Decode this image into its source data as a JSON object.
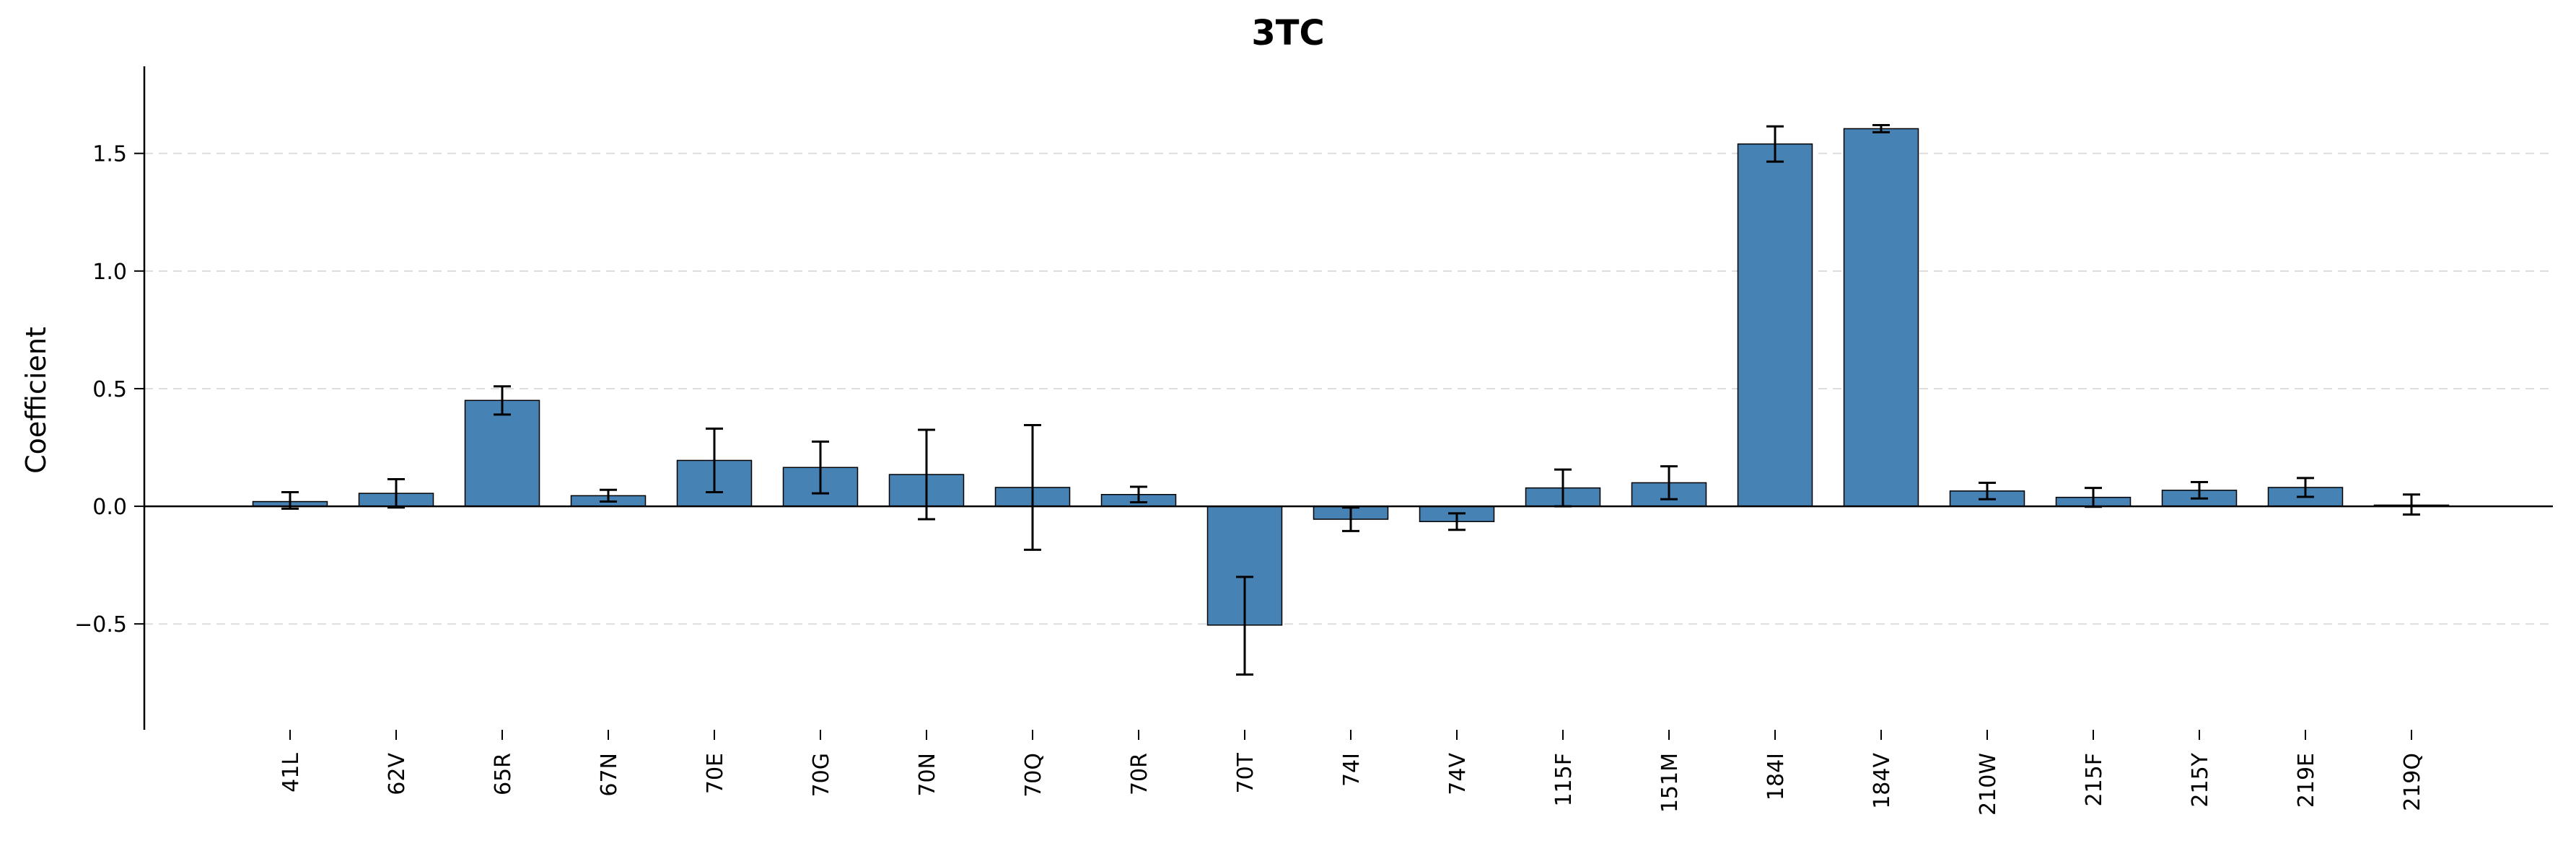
{
  "chart_data": {
    "type": "bar",
    "title": "3TC",
    "xlabel": "",
    "ylabel": "Coefficient",
    "ylim": [
      -0.95,
      1.87
    ],
    "yticks": [
      -0.5,
      0.0,
      0.5,
      1.0,
      1.5
    ],
    "ytick_labels": [
      "−0.5",
      "0.0",
      "0.5",
      "1.0",
      "1.5"
    ],
    "grid": "horizontal dashed",
    "bar_color": "#4682b4",
    "categories": [
      "41L",
      "62V",
      "65R",
      "67N",
      "70E",
      "70G",
      "70N",
      "70Q",
      "70R",
      "70T",
      "74I",
      "74V",
      "115F",
      "151M",
      "184I",
      "184V",
      "210W",
      "215F",
      "215Y",
      "219E",
      "219Q"
    ],
    "values": [
      0.02,
      0.055,
      0.45,
      0.045,
      0.195,
      0.165,
      0.135,
      0.08,
      0.05,
      -0.505,
      -0.055,
      -0.065,
      0.078,
      0.1,
      1.54,
      1.605,
      0.065,
      0.038,
      0.068,
      0.08,
      0.005
    ],
    "errors": [
      [
        0.03,
        0.04
      ],
      [
        0.06,
        0.06
      ],
      [
        0.06,
        0.06
      ],
      [
        0.025,
        0.025
      ],
      [
        0.135,
        0.135
      ],
      [
        0.11,
        0.11
      ],
      [
        0.19,
        0.19
      ],
      [
        0.265,
        0.265
      ],
      [
        0.033,
        0.033
      ],
      [
        0.21,
        0.205
      ],
      [
        0.05,
        0.05
      ],
      [
        0.035,
        0.035
      ],
      [
        0.078,
        0.078
      ],
      [
        0.07,
        0.07
      ],
      [
        0.075,
        0.075
      ],
      [
        0.015,
        0.015
      ],
      [
        0.035,
        0.035
      ],
      [
        0.04,
        0.04
      ],
      [
        0.035,
        0.035
      ],
      [
        0.04,
        0.04
      ],
      [
        0.04,
        0.045
      ]
    ]
  }
}
